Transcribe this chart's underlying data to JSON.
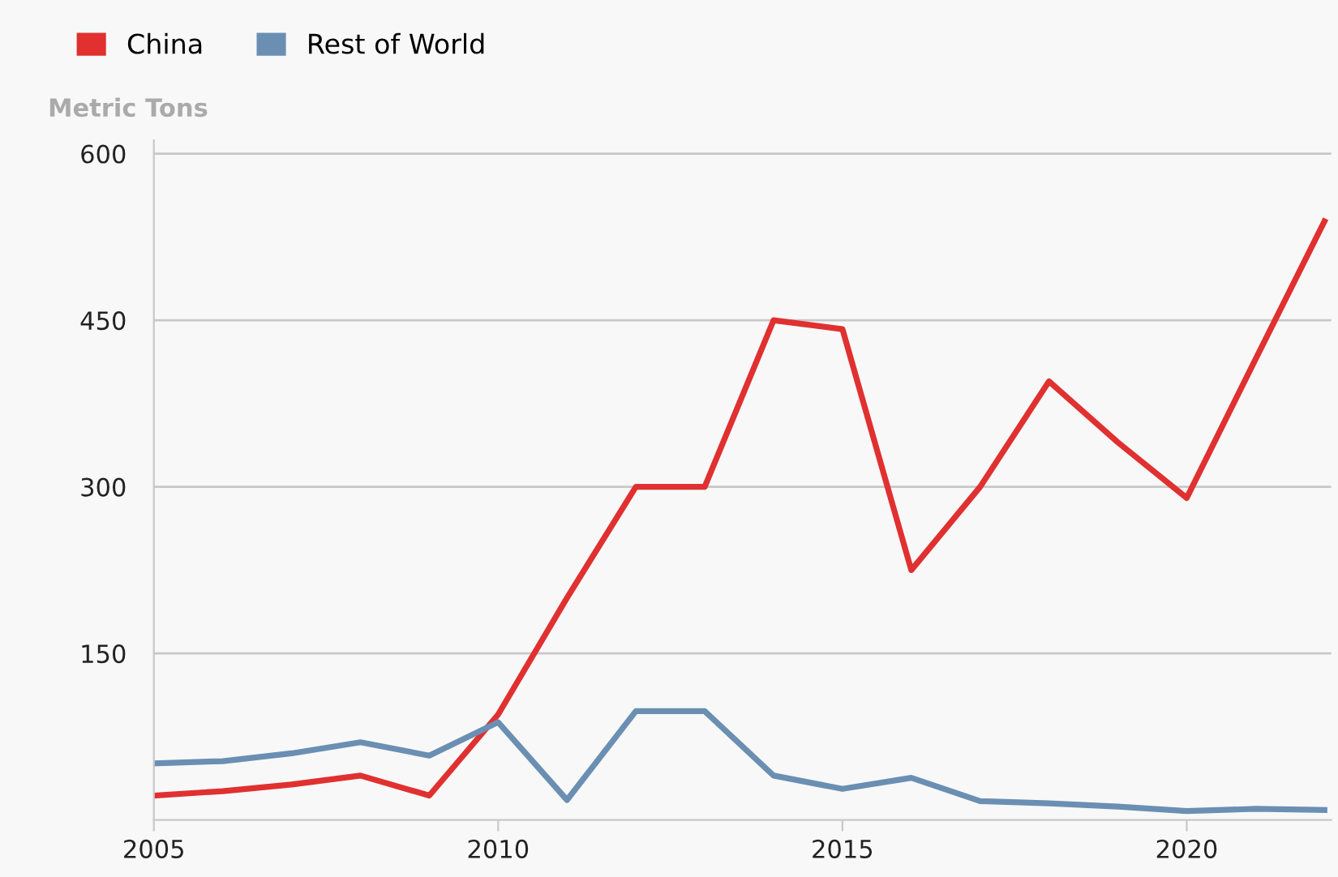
{
  "chart_data": {
    "type": "line",
    "ylabel": "Metric Tons",
    "x": [
      2005,
      2006,
      2007,
      2008,
      2009,
      2010,
      2011,
      2012,
      2013,
      2014,
      2015,
      2016,
      2017,
      2018,
      2019,
      2020,
      2021,
      2022
    ],
    "series": [
      {
        "name": "China",
        "color": "#e03030",
        "values": [
          22,
          26,
          32,
          40,
          22,
          95,
          200,
          300,
          300,
          450,
          442,
          225,
          300,
          395,
          340,
          290,
          415,
          539
        ]
      },
      {
        "name": "Rest of World",
        "color": "#6a8fb3",
        "values": [
          51,
          53,
          60,
          70,
          58,
          88,
          18,
          98,
          98,
          40,
          28,
          38,
          17,
          15,
          12,
          8,
          10,
          9
        ]
      }
    ],
    "xlim": [
      2005,
      2022.1
    ],
    "xticks": [
      2005,
      2010,
      2015,
      2020
    ],
    "ylim": [
      0,
      612
    ],
    "yticks": [
      150,
      300,
      450,
      600
    ],
    "grid": "y",
    "legend": "top left",
    "marker": "none",
    "line_style": "solid"
  }
}
